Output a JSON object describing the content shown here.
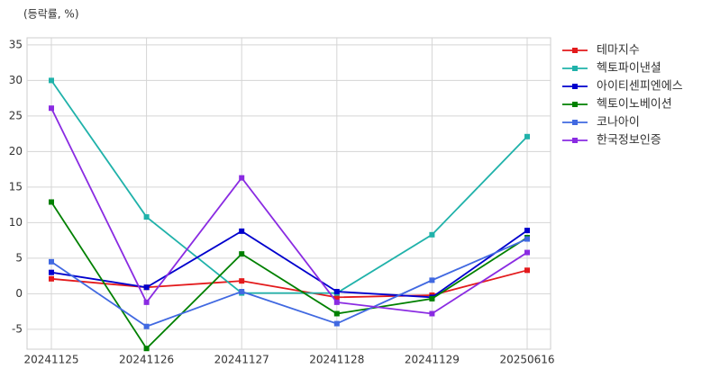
{
  "chart_data": {
    "type": "line",
    "title": "(등락률, %)",
    "categories": [
      "20241125",
      "20241126",
      "20241127",
      "20241128",
      "20241129",
      "20250616"
    ],
    "series": [
      {
        "name": "테마지수",
        "color": "#e31a1c",
        "values": [
          2.1,
          0.9,
          1.8,
          -0.5,
          -0.2,
          3.3
        ]
      },
      {
        "name": "헥토파이낸셜",
        "color": "#20b2aa",
        "values": [
          30,
          10.8,
          0.1,
          0.1,
          8.3,
          22.1
        ]
      },
      {
        "name": "아이티센피엔에스",
        "color": "#0000cd",
        "values": [
          3.0,
          0.9,
          8.8,
          0.3,
          -0.5,
          8.9
        ]
      },
      {
        "name": "헥토이노베이션",
        "color": "#008000",
        "values": [
          12.9,
          -7.7,
          5.6,
          -2.8,
          -0.7,
          7.9
        ]
      },
      {
        "name": "코나아이",
        "color": "#4169e1",
        "values": [
          4.5,
          -4.6,
          0.3,
          -4.2,
          1.9,
          7.7
        ]
      },
      {
        "name": "한국정보인증",
        "color": "#8a2be2",
        "values": [
          26.1,
          -1.2,
          16.3,
          -1.2,
          -2.8,
          5.8
        ]
      }
    ],
    "ylim": [
      -7.8,
      36
    ],
    "yticks": [
      -5,
      0,
      5,
      10,
      15,
      20,
      25,
      30,
      35
    ],
    "grid": true,
    "legend": "right"
  }
}
